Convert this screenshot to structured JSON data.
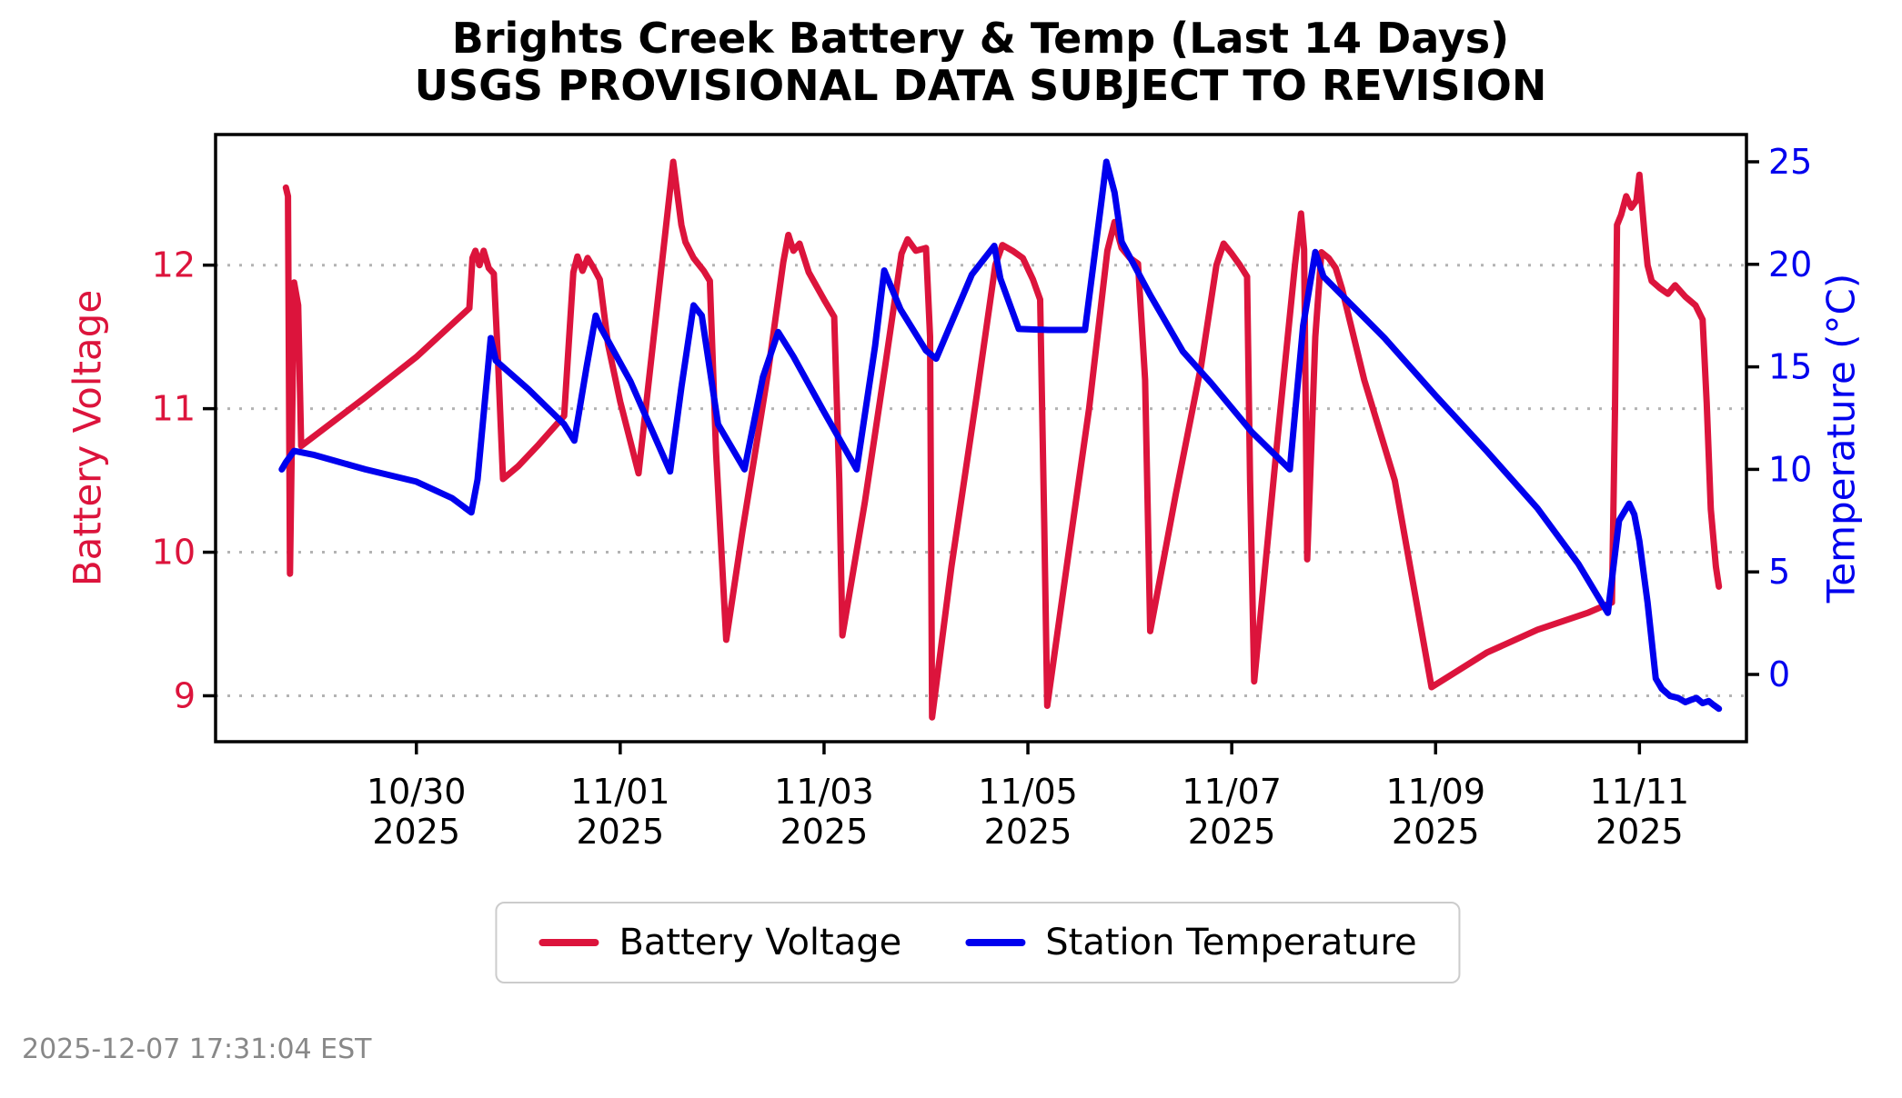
{
  "title": {
    "line1": "Brights Creek Battery & Temp (Last 14 Days)",
    "line2": "USGS PROVISIONAL DATA SUBJECT TO REVISION"
  },
  "timestamp": "2025-12-07 17:31:04 EST",
  "colors": {
    "battery": "#DC143C",
    "temperature": "#0000EE",
    "grid": "#b3b3b3",
    "axis": "#000000",
    "timestamp_gray": "#888888"
  },
  "legend": [
    {
      "label": "Battery Voltage",
      "color": "#DC143C"
    },
    {
      "label": "Station Temperature",
      "color": "#0000EE"
    }
  ],
  "chart_data": {
    "type": "line",
    "title": "Brights Creek Battery & Temp (Last 14 Days) — USGS PROVISIONAL DATA SUBJECT TO REVISION",
    "x_axis": {
      "epoch": "days since 2025-10-28 00:00",
      "domain_days": [
        0.03,
        15.05
      ],
      "tick_positions_days": [
        2,
        4,
        6,
        8,
        10,
        12,
        14
      ],
      "tick_labels": [
        [
          "10/30",
          "2025"
        ],
        [
          "11/01",
          "2025"
        ],
        [
          "11/03",
          "2025"
        ],
        [
          "11/05",
          "2025"
        ],
        [
          "11/07",
          "2025"
        ],
        [
          "11/09",
          "2025"
        ],
        [
          "11/11",
          "2025"
        ]
      ]
    },
    "y_left": {
      "label": "Battery Voltage",
      "color": "#DC143C",
      "ticks": [
        9,
        10,
        11,
        12
      ],
      "domain": [
        8.68,
        12.91
      ],
      "gridlines_at": [
        9,
        10,
        11,
        12
      ]
    },
    "y_right": {
      "label": "Temperature (°C)",
      "color": "#0000EE",
      "ticks": [
        0,
        5,
        10,
        15,
        20,
        25
      ],
      "domain": [
        -3.28,
        26.33
      ]
    },
    "grid": {
      "style": "dotted",
      "color": "#b3b3b3"
    },
    "legend_position": "bottom center",
    "series": [
      {
        "name": "Battery Voltage",
        "axis": "left",
        "color": "#DC143C",
        "points": [
          [
            0.72,
            12.54
          ],
          [
            0.74,
            12.48
          ],
          [
            0.76,
            9.85
          ],
          [
            0.8,
            11.88
          ],
          [
            0.84,
            11.72
          ],
          [
            0.87,
            10.74
          ],
          [
            1.5,
            11.08
          ],
          [
            2.0,
            11.36
          ],
          [
            2.52,
            11.7
          ],
          [
            2.55,
            12.05
          ],
          [
            2.58,
            12.1
          ],
          [
            2.62,
            12.0
          ],
          [
            2.66,
            12.1
          ],
          [
            2.71,
            11.98
          ],
          [
            2.76,
            11.94
          ],
          [
            2.8,
            11.35
          ],
          [
            2.85,
            10.51
          ],
          [
            3.0,
            10.6
          ],
          [
            3.2,
            10.75
          ],
          [
            3.45,
            10.95
          ],
          [
            3.54,
            11.95
          ],
          [
            3.58,
            12.06
          ],
          [
            3.63,
            11.96
          ],
          [
            3.68,
            12.05
          ],
          [
            3.74,
            11.98
          ],
          [
            3.8,
            11.9
          ],
          [
            3.88,
            11.45
          ],
          [
            4.0,
            11.05
          ],
          [
            4.18,
            10.55
          ],
          [
            4.52,
            12.72
          ],
          [
            4.6,
            12.28
          ],
          [
            4.64,
            12.16
          ],
          [
            4.72,
            12.05
          ],
          [
            4.82,
            11.96
          ],
          [
            4.88,
            11.89
          ],
          [
            4.94,
            10.7
          ],
          [
            5.04,
            9.39
          ],
          [
            5.2,
            10.15
          ],
          [
            5.45,
            11.25
          ],
          [
            5.6,
            12.02
          ],
          [
            5.65,
            12.21
          ],
          [
            5.7,
            12.1
          ],
          [
            5.76,
            12.15
          ],
          [
            5.85,
            11.95
          ],
          [
            6.0,
            11.76
          ],
          [
            6.1,
            11.64
          ],
          [
            6.15,
            10.5
          ],
          [
            6.18,
            9.42
          ],
          [
            6.4,
            10.35
          ],
          [
            6.6,
            11.3
          ],
          [
            6.76,
            12.08
          ],
          [
            6.82,
            12.18
          ],
          [
            6.9,
            12.1
          ],
          [
            7.0,
            12.12
          ],
          [
            7.04,
            11.5
          ],
          [
            7.06,
            8.85
          ],
          [
            7.25,
            9.9
          ],
          [
            7.5,
            11.1
          ],
          [
            7.68,
            12.0
          ],
          [
            7.75,
            12.14
          ],
          [
            7.85,
            12.1
          ],
          [
            7.95,
            12.05
          ],
          [
            8.05,
            11.9
          ],
          [
            8.12,
            11.76
          ],
          [
            8.16,
            10.2
          ],
          [
            8.19,
            8.93
          ],
          [
            8.4,
            10.0
          ],
          [
            8.6,
            11.0
          ],
          [
            8.78,
            12.1
          ],
          [
            8.85,
            12.3
          ],
          [
            8.92,
            12.12
          ],
          [
            9.0,
            12.05
          ],
          [
            9.08,
            12.01
          ],
          [
            9.15,
            11.2
          ],
          [
            9.2,
            9.45
          ],
          [
            9.45,
            10.4
          ],
          [
            9.7,
            11.3
          ],
          [
            9.85,
            12.0
          ],
          [
            9.92,
            12.15
          ],
          [
            10.0,
            12.08
          ],
          [
            10.08,
            12.0
          ],
          [
            10.15,
            11.92
          ],
          [
            10.18,
            10.5
          ],
          [
            10.22,
            9.1
          ],
          [
            10.45,
            10.8
          ],
          [
            10.62,
            12.0
          ],
          [
            10.68,
            12.36
          ],
          [
            10.71,
            12.11
          ],
          [
            10.74,
            9.95
          ],
          [
            10.82,
            11.5
          ],
          [
            10.88,
            12.09
          ],
          [
            10.95,
            12.05
          ],
          [
            11.02,
            11.98
          ],
          [
            11.08,
            11.84
          ],
          [
            11.3,
            11.2
          ],
          [
            11.6,
            10.5
          ],
          [
            11.96,
            9.06
          ],
          [
            12.5,
            9.3
          ],
          [
            13.0,
            9.46
          ],
          [
            13.5,
            9.58
          ],
          [
            13.73,
            9.65
          ],
          [
            13.76,
            11.0
          ],
          [
            13.78,
            12.28
          ],
          [
            13.82,
            12.35
          ],
          [
            13.87,
            12.48
          ],
          [
            13.92,
            12.4
          ],
          [
            13.97,
            12.45
          ],
          [
            14.0,
            12.63
          ],
          [
            14.05,
            12.22
          ],
          [
            14.08,
            12.0
          ],
          [
            14.12,
            11.89
          ],
          [
            14.2,
            11.84
          ],
          [
            14.28,
            11.8
          ],
          [
            14.35,
            11.86
          ],
          [
            14.45,
            11.78
          ],
          [
            14.55,
            11.72
          ],
          [
            14.62,
            11.62
          ],
          [
            14.66,
            11.04
          ],
          [
            14.7,
            10.3
          ],
          [
            14.75,
            9.9
          ],
          [
            14.78,
            9.76
          ]
        ]
      },
      {
        "name": "Station Temperature",
        "axis": "right",
        "color": "#0000EE",
        "points": [
          [
            0.68,
            10.0
          ],
          [
            0.72,
            10.35
          ],
          [
            0.8,
            10.9
          ],
          [
            1.0,
            10.7
          ],
          [
            1.5,
            10.0
          ],
          [
            2.0,
            9.4
          ],
          [
            2.35,
            8.6
          ],
          [
            2.54,
            7.9
          ],
          [
            2.6,
            9.5
          ],
          [
            2.73,
            16.4
          ],
          [
            2.78,
            15.3
          ],
          [
            3.1,
            13.9
          ],
          [
            3.45,
            12.2
          ],
          [
            3.55,
            11.4
          ],
          [
            3.67,
            15.0
          ],
          [
            3.76,
            17.5
          ],
          [
            3.8,
            17.0
          ],
          [
            4.1,
            14.3
          ],
          [
            4.49,
            9.9
          ],
          [
            4.6,
            14.0
          ],
          [
            4.72,
            18.0
          ],
          [
            4.8,
            17.5
          ],
          [
            4.96,
            12.2
          ],
          [
            5.22,
            10.0
          ],
          [
            5.4,
            14.5
          ],
          [
            5.55,
            16.7
          ],
          [
            5.7,
            15.5
          ],
          [
            6.0,
            12.8
          ],
          [
            6.32,
            10.0
          ],
          [
            6.5,
            16.0
          ],
          [
            6.59,
            19.7
          ],
          [
            6.75,
            17.8
          ],
          [
            7.0,
            15.8
          ],
          [
            7.1,
            15.4
          ],
          [
            7.45,
            19.5
          ],
          [
            7.67,
            20.9
          ],
          [
            7.73,
            19.3
          ],
          [
            7.91,
            16.85
          ],
          [
            8.2,
            16.8
          ],
          [
            8.56,
            16.8
          ],
          [
            8.72,
            23.0
          ],
          [
            8.77,
            25.0
          ],
          [
            8.85,
            23.5
          ],
          [
            8.92,
            21.1
          ],
          [
            9.2,
            18.5
          ],
          [
            9.52,
            15.75
          ],
          [
            9.8,
            14.2
          ],
          [
            10.2,
            11.8
          ],
          [
            10.57,
            10.0
          ],
          [
            10.7,
            17.0
          ],
          [
            10.82,
            20.6
          ],
          [
            10.9,
            19.4
          ],
          [
            11.5,
            16.4
          ],
          [
            12.0,
            13.6
          ],
          [
            12.5,
            10.9
          ],
          [
            13.0,
            8.1
          ],
          [
            13.4,
            5.4
          ],
          [
            13.69,
            3.0
          ],
          [
            13.8,
            7.5
          ],
          [
            13.9,
            8.33
          ],
          [
            13.95,
            7.8
          ],
          [
            14.0,
            6.5
          ],
          [
            14.08,
            3.5
          ],
          [
            14.16,
            -0.2
          ],
          [
            14.22,
            -0.7
          ],
          [
            14.3,
            -1.05
          ],
          [
            14.38,
            -1.15
          ],
          [
            14.45,
            -1.35
          ],
          [
            14.5,
            -1.25
          ],
          [
            14.56,
            -1.15
          ],
          [
            14.62,
            -1.4
          ],
          [
            14.68,
            -1.3
          ],
          [
            14.73,
            -1.5
          ],
          [
            14.78,
            -1.67
          ]
        ]
      }
    ]
  }
}
